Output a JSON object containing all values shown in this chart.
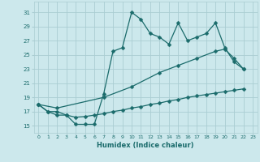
{
  "bg_color": "#cce8ec",
  "grid_color": "#aacdd2",
  "line_color": "#1a6b6b",
  "xlabel": "Humidex (Indice chaleur)",
  "xlim": [
    -0.5,
    23.5
  ],
  "ylim": [
    14,
    32.5
  ],
  "yticks": [
    15,
    17,
    19,
    21,
    23,
    25,
    27,
    29,
    31
  ],
  "xtick_labels": [
    "0",
    "1",
    "2",
    "3",
    "4",
    "5",
    "6",
    "7",
    "8",
    "9",
    "10",
    "11",
    "12",
    "13",
    "14",
    "15",
    "16",
    "17",
    "18",
    "19",
    "20",
    "21",
    "22",
    "23"
  ],
  "xtick_pos": [
    0,
    1,
    2,
    3,
    4,
    5,
    6,
    7,
    8,
    9,
    10,
    11,
    12,
    13,
    14,
    15,
    16,
    17,
    18,
    19,
    20,
    21,
    22,
    23
  ],
  "line1_x": [
    0,
    1,
    2,
    3,
    4,
    5,
    6,
    7,
    8,
    9,
    10,
    11,
    12,
    13,
    14,
    15,
    16,
    17,
    18,
    19,
    20,
    21,
    22
  ],
  "line1_y": [
    18.0,
    17.0,
    17.0,
    16.5,
    15.2,
    15.2,
    15.2,
    19.5,
    25.5,
    26.0,
    31.0,
    30.0,
    28.0,
    27.5,
    26.5,
    29.5,
    27.0,
    27.5,
    28.0,
    29.5,
    26.0,
    24.0,
    23.0
  ],
  "line2_x": [
    0,
    2,
    7,
    10,
    13,
    15,
    17,
    19,
    20,
    21,
    22
  ],
  "line2_y": [
    18.0,
    17.5,
    19.0,
    20.5,
    22.5,
    23.5,
    24.5,
    25.5,
    25.8,
    24.5,
    23.0
  ],
  "line3_x": [
    0,
    1,
    2,
    3,
    4,
    5,
    6,
    7,
    8,
    9,
    10,
    11,
    12,
    13,
    14,
    15,
    16,
    17,
    18,
    19,
    20,
    21,
    22
  ],
  "line3_y": [
    18.0,
    17.0,
    16.5,
    16.5,
    16.2,
    16.3,
    16.5,
    16.7,
    17.0,
    17.2,
    17.5,
    17.7,
    18.0,
    18.2,
    18.5,
    18.7,
    19.0,
    19.2,
    19.4,
    19.6,
    19.8,
    20.0,
    20.2
  ]
}
